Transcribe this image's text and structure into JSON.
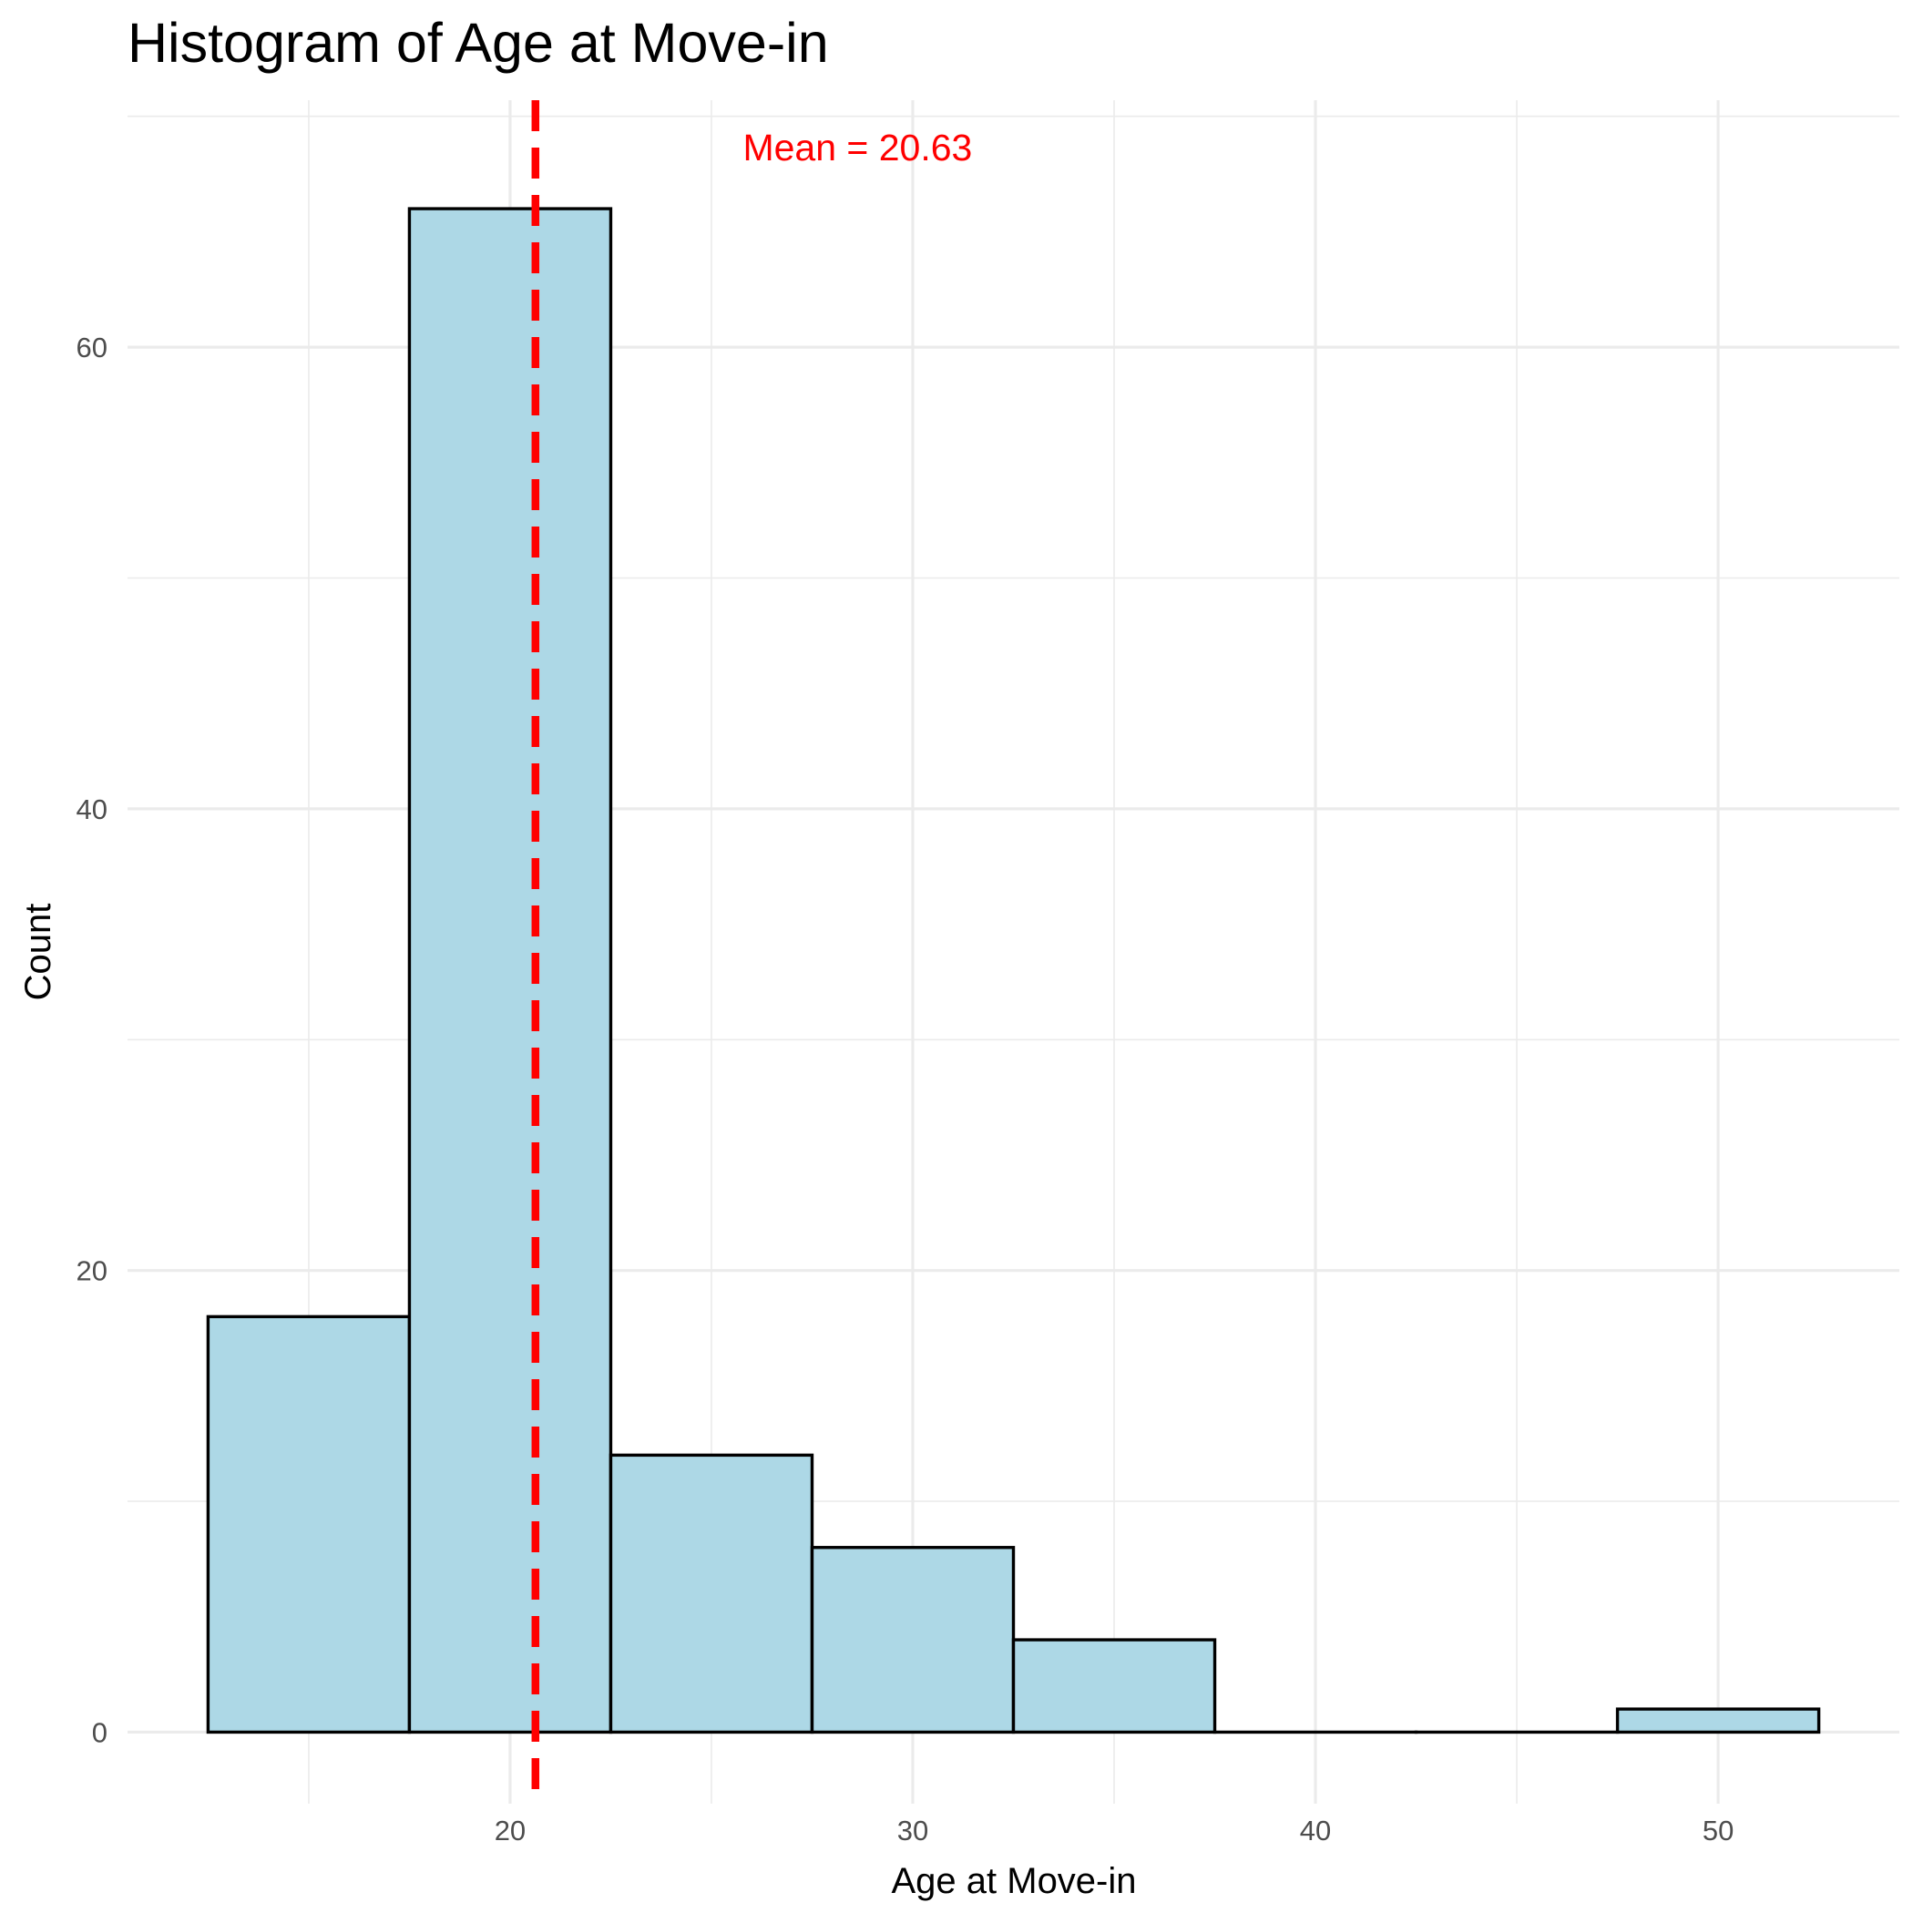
{
  "chart_data": {
    "type": "bar",
    "title": "Histogram of Age at Move-in",
    "xlabel": "Age at Move-in",
    "ylabel": "Count",
    "xlim": [
      10.5,
      54.5
    ],
    "ylim": [
      -3.1,
      70.7
    ],
    "x_ticks": [
      20,
      30,
      40,
      50
    ],
    "y_ticks": [
      0,
      20,
      40,
      60
    ],
    "bin_width": 5,
    "bins": [
      {
        "start": 12.5,
        "end": 17.5,
        "count": 18
      },
      {
        "start": 17.5,
        "end": 22.5,
        "count": 66
      },
      {
        "start": 22.5,
        "end": 27.5,
        "count": 12
      },
      {
        "start": 27.5,
        "end": 32.5,
        "count": 8
      },
      {
        "start": 32.5,
        "end": 37.5,
        "count": 4
      },
      {
        "start": 37.5,
        "end": 42.5,
        "count": 0
      },
      {
        "start": 42.5,
        "end": 47.5,
        "count": 0
      },
      {
        "start": 47.5,
        "end": 52.5,
        "count": 1
      }
    ],
    "mean_line": {
      "value": 20.63,
      "label": "Mean = 20.63",
      "color": "#ff0000",
      "style": "dashed"
    },
    "colors": {
      "bar_fill": "#add8e6",
      "bar_stroke": "#000000",
      "grid": "#ebebeb"
    },
    "grid": true,
    "legend": "none"
  }
}
